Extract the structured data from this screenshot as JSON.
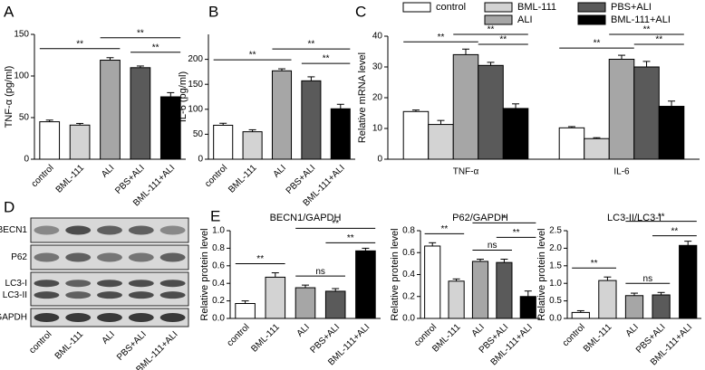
{
  "panel_labels": [
    "A",
    "B",
    "C",
    "D",
    "E"
  ],
  "blot": {
    "rows": [
      "BECN1",
      "P62",
      "LC3-I",
      "LC3-II",
      "GAPDH"
    ],
    "lanes": [
      "control",
      "BML-111",
      "ALI",
      "PBS+ALI",
      "BML-111+ALI"
    ]
  },
  "chart_data": [
    {
      "type": "bar",
      "ylabel": "TNF-α (pg/ml)",
      "categories": [
        "control",
        "BML-111",
        "ALI",
        "PBS+ALI",
        "BML-111+ALI"
      ],
      "values": [
        45,
        41,
        119,
        110,
        75
      ],
      "errors": [
        2,
        2,
        3,
        2,
        5
      ],
      "colors": [
        "#ffffff",
        "#d3d3d3",
        "#a6a6a6",
        "#5a5a5a",
        "#000000"
      ],
      "ylim": [
        0,
        150
      ],
      "yticks": [
        0,
        50,
        100,
        150
      ],
      "annotations": [
        "**",
        "**",
        "**"
      ]
    },
    {
      "type": "bar",
      "ylabel": "IL-6 (pg/ml)",
      "categories": [
        "control",
        "BML-111",
        "ALI",
        "PBS+ALI",
        "BML-111+ALI"
      ],
      "values": [
        68,
        55,
        177,
        157,
        101
      ],
      "errors": [
        4,
        4,
        4,
        8,
        9
      ],
      "colors": [
        "#ffffff",
        "#d3d3d3",
        "#a6a6a6",
        "#5a5a5a",
        "#000000"
      ],
      "ylim": [
        0,
        250
      ],
      "yticks": [
        0,
        50,
        100,
        150,
        200
      ],
      "annotations": [
        "**",
        "**",
        "**"
      ]
    },
    {
      "type": "bar",
      "ylabel": "Relative mRNA level",
      "categories": [
        "TNF-α",
        "IL-6"
      ],
      "series": [
        {
          "name": "control",
          "color": "#ffffff",
          "values": [
            15.5,
            10.2
          ],
          "errors": [
            0.5,
            0.4
          ]
        },
        {
          "name": "BML-111",
          "color": "#d3d3d3",
          "values": [
            11.3,
            6.7
          ],
          "errors": [
            1.3,
            0.3
          ]
        },
        {
          "name": "ALI",
          "color": "#a6a6a6",
          "values": [
            34,
            32.5
          ],
          "errors": [
            1.8,
            1.3
          ]
        },
        {
          "name": "PBS+ALI",
          "color": "#5a5a5a",
          "values": [
            30.5,
            30
          ],
          "errors": [
            1.0,
            1.8
          ]
        },
        {
          "name": "BML-111+ALI",
          "color": "#000000",
          "values": [
            16.5,
            17.2
          ],
          "errors": [
            1.5,
            1.7
          ]
        }
      ],
      "ylim": [
        0,
        40
      ],
      "yticks": [
        0,
        10,
        20,
        30,
        40
      ],
      "annotations": [
        "**",
        "**",
        "**",
        "**",
        "**",
        "**"
      ]
    },
    {
      "type": "bar",
      "title": "BECN1/GAPDH",
      "ylabel": "Relative protein level",
      "categories": [
        "control",
        "BML-111",
        "ALI",
        "PBS+ALI",
        "BML-111+ALI"
      ],
      "values": [
        0.17,
        0.47,
        0.35,
        0.31,
        0.77
      ],
      "errors": [
        0.03,
        0.05,
        0.03,
        0.03,
        0.03
      ],
      "colors": [
        "#ffffff",
        "#d3d3d3",
        "#a6a6a6",
        "#5a5a5a",
        "#000000"
      ],
      "ylim": [
        0,
        1.0
      ],
      "yticks": [
        {
          "value": 0,
          "label": "0.0"
        },
        0.2,
        0.4,
        0.6,
        0.8,
        {
          "value": 1,
          "label": "1.0"
        }
      ],
      "annotations": [
        "**",
        "ns",
        "**",
        "**"
      ]
    },
    {
      "type": "bar",
      "title": "P62/GAPDH",
      "ylabel": "Relative protein level",
      "categories": [
        "control",
        "BML-111",
        "ALI",
        "PBS+ALI",
        "BML-111+ALI"
      ],
      "values": [
        0.66,
        0.34,
        0.52,
        0.51,
        0.2
      ],
      "errors": [
        0.03,
        0.02,
        0.02,
        0.03,
        0.05
      ],
      "colors": [
        "#ffffff",
        "#d3d3d3",
        "#a6a6a6",
        "#5a5a5a",
        "#000000"
      ],
      "ylim": [
        0,
        0.8
      ],
      "yticks": [
        {
          "value": 0,
          "label": "0.0"
        },
        0.2,
        0.4,
        0.6,
        0.8
      ],
      "annotations": [
        "**",
        "ns",
        "*",
        "**"
      ]
    },
    {
      "type": "bar",
      "title": "LC3-II/LC3-I",
      "ylabel": "Relative protein level",
      "categories": [
        "control",
        "BML-111",
        "ALI",
        "PBS+ALI",
        "BML-111+ALI"
      ],
      "values": [
        0.17,
        1.08,
        0.65,
        0.67,
        2.08
      ],
      "errors": [
        0.05,
        0.1,
        0.07,
        0.07,
        0.12
      ],
      "colors": [
        "#ffffff",
        "#d3d3d3",
        "#a6a6a6",
        "#5a5a5a",
        "#000000"
      ],
      "ylim": [
        0,
        2.5
      ],
      "yticks": [
        {
          "value": 0,
          "label": "0.0"
        },
        0.5,
        {
          "value": 1,
          "label": "1.0"
        },
        1.5,
        {
          "value": 2,
          "label": "2.0"
        },
        2.5
      ],
      "annotations": [
        "**",
        "ns",
        "**",
        "**"
      ]
    }
  ]
}
